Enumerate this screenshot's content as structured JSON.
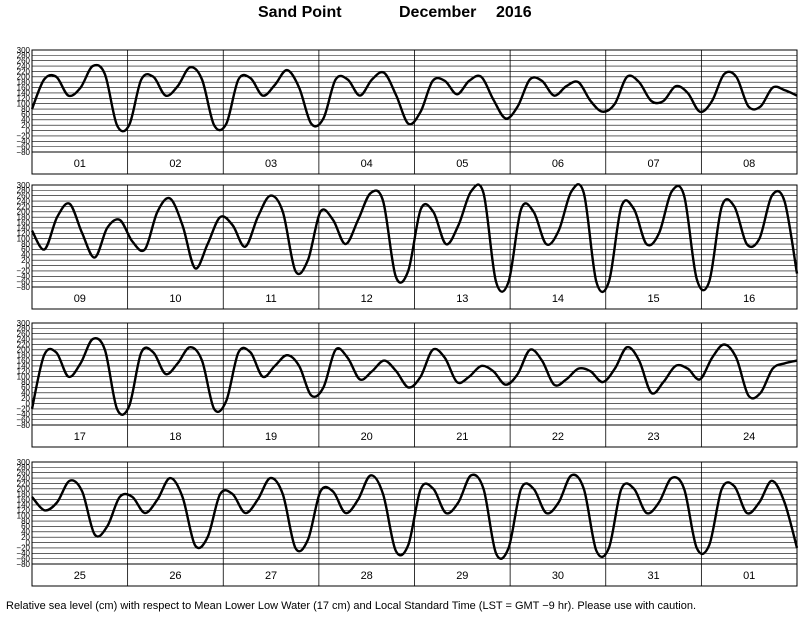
{
  "title": {
    "station": "Sand Point",
    "month": "December",
    "year": "2016"
  },
  "footer": {
    "caption": "Relative sea level (cm) with respect to Mean Lower Low Water (17 cm) and Local Standard Time (LST = GMT −9 hr). Please use with caution."
  },
  "chart_data": {
    "type": "line",
    "y_ticks": [
      "300",
      "280",
      "260",
      "240",
      "220",
      "200",
      "180",
      "160",
      "140",
      "120",
      "100",
      "80",
      "60",
      "40",
      "20",
      "0",
      "−20",
      "−40",
      "−60",
      "−80"
    ],
    "ylim": [
      -80,
      300
    ],
    "grid": true,
    "panels": [
      {
        "days": [
          "01",
          "02",
          "03",
          "04",
          "05",
          "06",
          "07",
          "08"
        ],
        "values": [
          80,
          190,
          200,
          130,
          160,
          240,
          210,
          20,
          20,
          190,
          200,
          130,
          165,
          235,
          190,
          20,
          25,
          190,
          195,
          130,
          170,
          225,
          160,
          25,
          45,
          190,
          190,
          130,
          190,
          215,
          130,
          25,
          70,
          185,
          185,
          135,
          185,
          200,
          115,
          45,
          90,
          190,
          185,
          130,
          165,
          180,
          110,
          70,
          100,
          200,
          180,
          110,
          110,
          165,
          140,
          70,
          110,
          210,
          200,
          90,
          90,
          160,
          150,
          130
        ]
      },
      {
        "days": [
          "09",
          "10",
          "11",
          "12",
          "13",
          "14",
          "15",
          "16"
        ],
        "values": [
          130,
          60,
          180,
          230,
          120,
          30,
          140,
          170,
          90,
          60,
          200,
          250,
          150,
          -10,
          80,
          180,
          150,
          70,
          180,
          260,
          200,
          -20,
          20,
          200,
          170,
          80,
          170,
          270,
          240,
          -40,
          -20,
          210,
          200,
          80,
          150,
          275,
          270,
          -60,
          -60,
          210,
          200,
          80,
          130,
          275,
          270,
          -60,
          -60,
          220,
          210,
          80,
          120,
          275,
          260,
          -50,
          -60,
          220,
          220,
          80,
          100,
          260,
          240,
          -30
        ]
      },
      {
        "days": [
          "17",
          "18",
          "19",
          "20",
          "21",
          "22",
          "23",
          "24"
        ],
        "values": [
          -20,
          180,
          190,
          100,
          150,
          240,
          200,
          -20,
          -10,
          190,
          190,
          110,
          150,
          210,
          160,
          -20,
          10,
          190,
          190,
          100,
          140,
          180,
          140,
          30,
          60,
          200,
          170,
          90,
          120,
          160,
          120,
          60,
          100,
          200,
          170,
          80,
          100,
          140,
          120,
          70,
          110,
          200,
          160,
          70,
          90,
          130,
          120,
          80,
          130,
          210,
          160,
          40,
          80,
          140,
          130,
          90,
          170,
          220,
          170,
          30,
          40,
          130,
          150,
          160
        ]
      },
      {
        "days": [
          "25",
          "26",
          "27",
          "28",
          "29",
          "30",
          "31",
          "01"
        ],
        "values": [
          170,
          120,
          150,
          230,
          190,
          30,
          60,
          170,
          170,
          110,
          160,
          240,
          170,
          -10,
          20,
          180,
          180,
          110,
          160,
          240,
          180,
          -20,
          10,
          190,
          190,
          110,
          160,
          250,
          180,
          -30,
          -10,
          200,
          200,
          110,
          150,
          250,
          200,
          -40,
          -20,
          200,
          200,
          110,
          150,
          250,
          200,
          -30,
          -20,
          200,
          200,
          110,
          150,
          240,
          200,
          -20,
          -10,
          200,
          210,
          110,
          150,
          230,
          150,
          -20
        ]
      }
    ]
  }
}
